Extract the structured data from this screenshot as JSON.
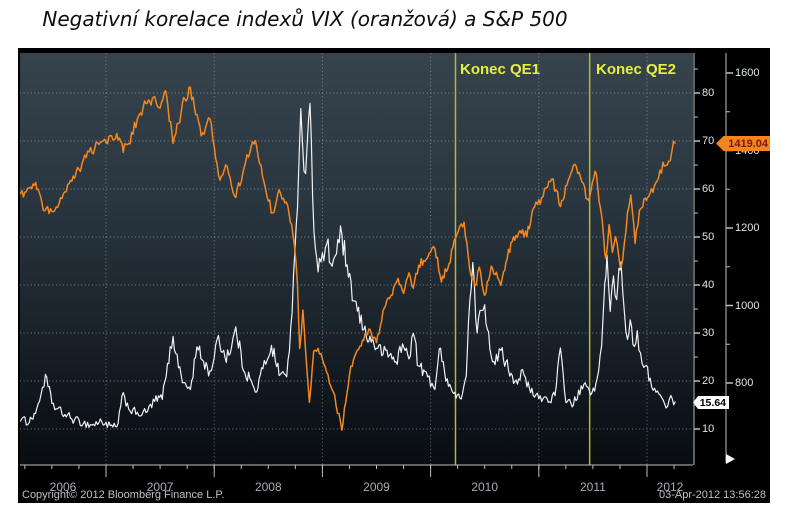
{
  "title": "Negativní korelace indexů VIX (oranžová) a S&P 500",
  "footer": {
    "copyright": "Copyright© 2012 Bloomberg Finance L.P.",
    "timestamp": "03-Apr-2012 13:56:28"
  },
  "colors": {
    "spx_line": "#f6871f",
    "vix_line": "#f0f2f3",
    "qe_line": "#b4ba2c",
    "qe_label": "#e6ee3e",
    "grid": "#c3ced4",
    "axis": "#b7bfc4",
    "tick_label": "#dfe5e8",
    "year_label": "#a5adb3",
    "spx_tag_bg": "#f5831e",
    "spx_tag_text": "#7a1c00",
    "vix_tag_bg": "#ffffff",
    "vix_tag_text": "#000000",
    "plot_bg_top": "#36434d",
    "plot_bg_bottom": "#090d12"
  },
  "chart_data": {
    "type": "line",
    "title": "Negativní korelace indexů VIX (oranžová) a S&P 500",
    "x_axis": {
      "unit": "year",
      "year_labels": [
        "2006",
        "2007",
        "2008",
        "2009",
        "2010",
        "2011",
        "2012"
      ],
      "range_decimal_year": [
        2006.21,
        2012.42
      ]
    },
    "right_inner_axis": {
      "name": "VIX",
      "tick_labels": [
        "80",
        "70",
        "60",
        "50",
        "40",
        "30",
        "20",
        "10"
      ],
      "tick_values": [
        80,
        70,
        60,
        50,
        40,
        30,
        20,
        10
      ],
      "range": [
        2.5,
        88.3
      ]
    },
    "right_outer_axis": {
      "name": "S&P 500",
      "tick_labels": [
        "1600",
        "1400",
        "1200",
        "1000",
        "800"
      ],
      "tick_values": [
        1600,
        1400,
        1200,
        1000,
        800
      ],
      "range": [
        588,
        1652
      ]
    },
    "grid": "dotted, horizontal every 10 VIX units, vertical at year boundaries",
    "events": [
      {
        "label": "Konec QE1",
        "x": 2010.23
      },
      {
        "label": "Konec QE2",
        "x": 2011.47
      }
    ],
    "last_values": {
      "spx_label": "1419.04",
      "vix_label": "15.64"
    },
    "series": [
      {
        "name": "S&P 500",
        "color": "orange",
        "axis": "right_outer",
        "points": [
          [
            2006.21,
            1285
          ],
          [
            2006.29,
            1303
          ],
          [
            2006.35,
            1315
          ],
          [
            2006.42,
            1246
          ],
          [
            2006.5,
            1240
          ],
          [
            2006.54,
            1258
          ],
          [
            2006.62,
            1292
          ],
          [
            2006.71,
            1330
          ],
          [
            2006.79,
            1372
          ],
          [
            2006.87,
            1398
          ],
          [
            2006.96,
            1420
          ],
          [
            2007.04,
            1435
          ],
          [
            2007.1,
            1447
          ],
          [
            2007.16,
            1398
          ],
          [
            2007.21,
            1422
          ],
          [
            2007.29,
            1478
          ],
          [
            2007.37,
            1520
          ],
          [
            2007.44,
            1537
          ],
          [
            2007.5,
            1508
          ],
          [
            2007.55,
            1550
          ],
          [
            2007.62,
            1420
          ],
          [
            2007.67,
            1470
          ],
          [
            2007.73,
            1535
          ],
          [
            2007.78,
            1562
          ],
          [
            2007.83,
            1492
          ],
          [
            2007.88,
            1442
          ],
          [
            2007.96,
            1478
          ],
          [
            2008.04,
            1332
          ],
          [
            2008.12,
            1358
          ],
          [
            2008.2,
            1276
          ],
          [
            2008.29,
            1372
          ],
          [
            2008.38,
            1423
          ],
          [
            2008.46,
            1320
          ],
          [
            2008.54,
            1238
          ],
          [
            2008.6,
            1296
          ],
          [
            2008.68,
            1260
          ],
          [
            2008.74,
            1160
          ],
          [
            2008.77,
            1055
          ],
          [
            2008.79,
            890
          ],
          [
            2008.82,
            985
          ],
          [
            2008.88,
            752
          ],
          [
            2008.92,
            880
          ],
          [
            2008.96,
            890
          ],
          [
            2009.04,
            828
          ],
          [
            2009.1,
            780
          ],
          [
            2009.18,
            680
          ],
          [
            2009.25,
            822
          ],
          [
            2009.3,
            872
          ],
          [
            2009.37,
            912
          ],
          [
            2009.44,
            938
          ],
          [
            2009.5,
            902
          ],
          [
            2009.56,
            985
          ],
          [
            2009.62,
            1016
          ],
          [
            2009.7,
            1068
          ],
          [
            2009.75,
            1032
          ],
          [
            2009.8,
            1086
          ],
          [
            2009.84,
            1046
          ],
          [
            2009.89,
            1105
          ],
          [
            2009.96,
            1122
          ],
          [
            2010.04,
            1148
          ],
          [
            2010.1,
            1062
          ],
          [
            2010.17,
            1110
          ],
          [
            2010.23,
            1172
          ],
          [
            2010.31,
            1214
          ],
          [
            2010.36,
            1095
          ],
          [
            2010.41,
            1048
          ],
          [
            2010.45,
            1098
          ],
          [
            2010.5,
            1025
          ],
          [
            2010.56,
            1100
          ],
          [
            2010.62,
            1072
          ],
          [
            2010.65,
            1050
          ],
          [
            2010.72,
            1142
          ],
          [
            2010.79,
            1183
          ],
          [
            2010.85,
            1192
          ],
          [
            2010.89,
            1180
          ],
          [
            2010.96,
            1256
          ],
          [
            2011.04,
            1284
          ],
          [
            2011.12,
            1330
          ],
          [
            2011.2,
            1258
          ],
          [
            2011.26,
            1312
          ],
          [
            2011.32,
            1362
          ],
          [
            2011.4,
            1318
          ],
          [
            2011.46,
            1268
          ],
          [
            2011.52,
            1350
          ],
          [
            2011.57,
            1252
          ],
          [
            2011.6,
            1172
          ],
          [
            2011.62,
            1120
          ],
          [
            2011.65,
            1208
          ],
          [
            2011.68,
            1140
          ],
          [
            2011.71,
            1175
          ],
          [
            2011.74,
            1126
          ],
          [
            2011.76,
            1100
          ],
          [
            2011.79,
            1160
          ],
          [
            2011.82,
            1238
          ],
          [
            2011.85,
            1282
          ],
          [
            2011.89,
            1164
          ],
          [
            2011.93,
            1244
          ],
          [
            2011.96,
            1258
          ],
          [
            2012.03,
            1292
          ],
          [
            2012.08,
            1316
          ],
          [
            2012.12,
            1348
          ],
          [
            2012.16,
            1362
          ],
          [
            2012.2,
            1372
          ],
          [
            2012.23,
            1402
          ],
          [
            2012.26,
            1419.04
          ]
        ]
      },
      {
        "name": "VIX",
        "color": "white",
        "axis": "right_inner",
        "points": [
          [
            2006.21,
            11.9
          ],
          [
            2006.29,
            11.5
          ],
          [
            2006.36,
            14
          ],
          [
            2006.44,
            21
          ],
          [
            2006.5,
            15.5
          ],
          [
            2006.54,
            14.2
          ],
          [
            2006.62,
            13
          ],
          [
            2006.71,
            11.9
          ],
          [
            2006.79,
            11.2
          ],
          [
            2006.87,
            10.8
          ],
          [
            2006.96,
            11.6
          ],
          [
            2007.04,
            10.6
          ],
          [
            2007.1,
            10.3
          ],
          [
            2007.16,
            17.3
          ],
          [
            2007.21,
            14.3
          ],
          [
            2007.29,
            13.2
          ],
          [
            2007.37,
            13.4
          ],
          [
            2007.45,
            15.8
          ],
          [
            2007.52,
            16.5
          ],
          [
            2007.58,
            24
          ],
          [
            2007.62,
            29.5
          ],
          [
            2007.67,
            23
          ],
          [
            2007.73,
            19.3
          ],
          [
            2007.78,
            18.2
          ],
          [
            2007.84,
            27
          ],
          [
            2007.89,
            24.5
          ],
          [
            2007.96,
            21.8
          ],
          [
            2008.04,
            29
          ],
          [
            2008.1,
            25
          ],
          [
            2008.16,
            27
          ],
          [
            2008.2,
            31
          ],
          [
            2008.27,
            22.5
          ],
          [
            2008.33,
            20.5
          ],
          [
            2008.38,
            17.5
          ],
          [
            2008.45,
            22.5
          ],
          [
            2008.53,
            27.5
          ],
          [
            2008.6,
            21.5
          ],
          [
            2008.67,
            21
          ],
          [
            2008.72,
            34
          ],
          [
            2008.745,
            46
          ],
          [
            2008.77,
            57
          ],
          [
            2008.8,
            78
          ],
          [
            2008.83,
            63
          ],
          [
            2008.86,
            70
          ],
          [
            2008.885,
            79
          ],
          [
            2008.91,
            57
          ],
          [
            2008.96,
            43
          ],
          [
            2009.04,
            48
          ],
          [
            2009.09,
            44
          ],
          [
            2009.13,
            47
          ],
          [
            2009.18,
            50.5
          ],
          [
            2009.24,
            41
          ],
          [
            2009.3,
            36.5
          ],
          [
            2009.37,
            31
          ],
          [
            2009.44,
            29
          ],
          [
            2009.5,
            27
          ],
          [
            2009.56,
            25.8
          ],
          [
            2009.62,
            25.5
          ],
          [
            2009.68,
            24
          ],
          [
            2009.74,
            27.5
          ],
          [
            2009.8,
            25
          ],
          [
            2009.84,
            30
          ],
          [
            2009.89,
            23
          ],
          [
            2009.96,
            21.5
          ],
          [
            2010.04,
            18.5
          ],
          [
            2010.08,
            26.5
          ],
          [
            2010.13,
            22
          ],
          [
            2010.2,
            17.8
          ],
          [
            2010.27,
            16.2
          ],
          [
            2010.33,
            21
          ],
          [
            2010.35,
            32
          ],
          [
            2010.39,
            44
          ],
          [
            2010.43,
            30
          ],
          [
            2010.47,
            35
          ],
          [
            2010.5,
            36
          ],
          [
            2010.56,
            25.5
          ],
          [
            2010.62,
            24
          ],
          [
            2010.65,
            26.5
          ],
          [
            2010.72,
            22.5
          ],
          [
            2010.79,
            20
          ],
          [
            2010.85,
            22
          ],
          [
            2010.89,
            19
          ],
          [
            2010.96,
            16.8
          ],
          [
            2011.04,
            16.5
          ],
          [
            2011.1,
            16
          ],
          [
            2011.15,
            17
          ],
          [
            2011.2,
            26.5
          ],
          [
            2011.25,
            15.8
          ],
          [
            2011.32,
            15.2
          ],
          [
            2011.38,
            17.5
          ],
          [
            2011.44,
            19.2
          ],
          [
            2011.48,
            16.8
          ],
          [
            2011.54,
            20.5
          ],
          [
            2011.58,
            27
          ],
          [
            2011.61,
            40
          ],
          [
            2011.63,
            46
          ],
          [
            2011.66,
            34
          ],
          [
            2011.69,
            42
          ],
          [
            2011.72,
            37
          ],
          [
            2011.74,
            43
          ],
          [
            2011.76,
            45.5
          ],
          [
            2011.79,
            34
          ],
          [
            2011.82,
            29
          ],
          [
            2011.845,
            33
          ],
          [
            2011.87,
            28
          ],
          [
            2011.91,
            30
          ],
          [
            2011.94,
            26
          ],
          [
            2011.97,
            23.2
          ],
          [
            2012.03,
            20.5
          ],
          [
            2012.07,
            18.3
          ],
          [
            2012.11,
            17.2
          ],
          [
            2012.15,
            15.8
          ],
          [
            2012.19,
            14.8
          ],
          [
            2012.22,
            16.8
          ],
          [
            2012.26,
            15.64
          ]
        ]
      }
    ]
  }
}
